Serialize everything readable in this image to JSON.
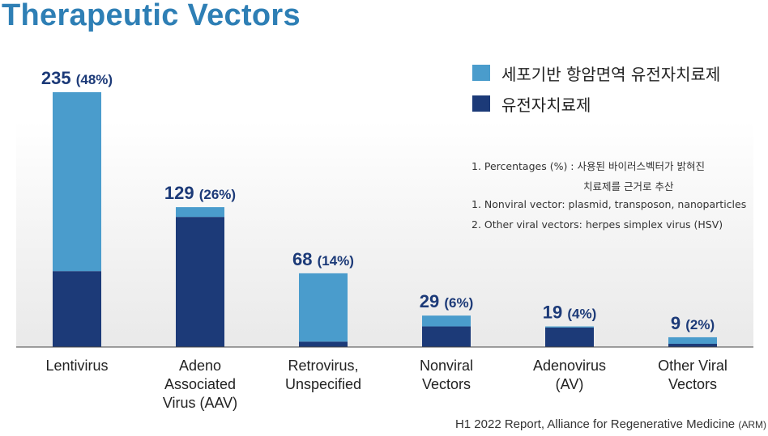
{
  "chart_data": {
    "type": "bar",
    "stacked": true,
    "title": "Therapeutic Vectors",
    "categories": [
      "Lentivirus",
      "Adeno Associated Virus (AAV)",
      "Retrovirus, Unspecified",
      "Nonviral Vectors",
      "Adenovirus (AV)",
      "Other Viral Vectors"
    ],
    "category_lines": [
      [
        "Lentivirus"
      ],
      [
        "Adeno",
        "Associated",
        "Virus (AAV)"
      ],
      [
        "Retrovirus,",
        "Unspecified"
      ],
      [
        "Nonviral",
        "Vectors"
      ],
      [
        "Adenovirus",
        "(AV)"
      ],
      [
        "Other Viral",
        "Vectors"
      ]
    ],
    "totals": [
      235,
      129,
      68,
      29,
      19,
      9
    ],
    "total_labels": [
      "235",
      "129",
      "68",
      "29",
      "19",
      "9"
    ],
    "percent_labels": [
      "(48%)",
      "(26%)",
      "(14%)",
      "(6%)",
      "(4%)",
      "(2%)"
    ],
    "series": [
      {
        "name": "유전자치료제",
        "color": "#1c3a78",
        "values": [
          70,
          120,
          5,
          19,
          18,
          3
        ]
      },
      {
        "name": "세포기반 항암면역 유전자치료제",
        "color": "#4a9ccc",
        "values": [
          165,
          9,
          63,
          10,
          1,
          6
        ]
      }
    ],
    "ylim": [
      0,
      250
    ],
    "legend_position": "top-right",
    "grid": false,
    "xlabel": "",
    "ylabel": ""
  },
  "notes": [
    "1. Percentages (%) : 사용된 바이러스벡터가 밝혀진",
    "치료제를 근거로 추산",
    "1. Nonviral vector: plasmid, transposon, nanoparticles",
    "2. Other viral vectors: herpes simplex virus (HSV)"
  ],
  "source": {
    "main": "H1 2022 Report, Alliance for Regenerative Medicine ",
    "suffix": "(ARM)"
  },
  "colors": {
    "title": "#2e7fb5",
    "dark": "#1c3a78",
    "light": "#4a9ccc",
    "value_label": "#1c3a78"
  }
}
